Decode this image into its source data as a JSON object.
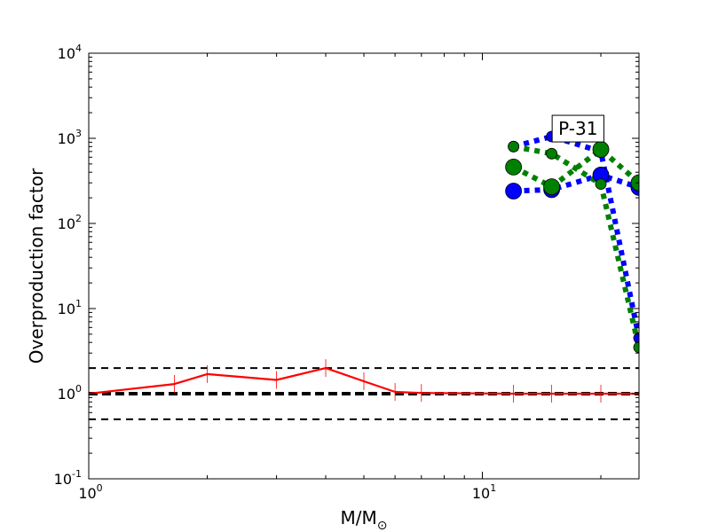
{
  "chart_data": {
    "type": "line",
    "title": "",
    "xlabel": "M/M",
    "xlabel_subscript": "⊙",
    "ylabel": "Overproduction factor",
    "xscale": "log",
    "yscale": "log",
    "xlim": [
      1,
      25
    ],
    "ylim": [
      0.1,
      10000
    ],
    "x_ticks": [
      {
        "value": 1,
        "base": "10",
        "exp": "0"
      },
      {
        "value": 10,
        "base": "10",
        "exp": "1"
      }
    ],
    "y_ticks": [
      {
        "value": 0.1,
        "base": "10",
        "exp": "-1"
      },
      {
        "value": 1,
        "base": "10",
        "exp": "0"
      },
      {
        "value": 10,
        "base": "10",
        "exp": "1"
      },
      {
        "value": 100,
        "base": "10",
        "exp": "2"
      },
      {
        "value": 1000,
        "base": "10",
        "exp": "3"
      },
      {
        "value": 10000,
        "base": "10",
        "exp": "4"
      }
    ],
    "grid": false,
    "legend": "none",
    "reference_lines": [
      {
        "y": 2,
        "style": "dashed",
        "weight": "thin",
        "color": "#000000"
      },
      {
        "y": 1,
        "style": "dashed",
        "weight": "thick",
        "color": "#000000"
      },
      {
        "y": 0.5,
        "style": "dashed",
        "weight": "thin",
        "color": "#000000"
      }
    ],
    "series": [
      {
        "color": "#ff0000",
        "style": "solid",
        "marker": "vline",
        "x": [
          1.0,
          1.65,
          2.0,
          3.0,
          4.0,
          5.0,
          6.0,
          7.0,
          12.0,
          15.0,
          20.0,
          25.0
        ],
        "y": [
          1.0,
          1.3,
          1.7,
          1.45,
          2.0,
          1.4,
          1.05,
          1.02,
          1.0,
          1.0,
          1.0,
          1.0
        ]
      },
      {
        "color": "#0000ff",
        "style": "dotted",
        "marker": "circle",
        "marker_size": "small",
        "x": [
          12.0,
          15.0,
          20.0,
          25.0
        ],
        "y": [
          800,
          1050,
          700,
          4.5
        ]
      },
      {
        "color": "#0000ff",
        "style": "dotted",
        "marker": "circle",
        "marker_size": "large",
        "x": [
          12.0,
          15.0,
          20.0,
          25.0
        ],
        "y": [
          240,
          250,
          370,
          265
        ]
      },
      {
        "color": "#008000",
        "style": "dotted",
        "marker": "circle",
        "marker_size": "small",
        "x": [
          12.0,
          15.0,
          20.0,
          25.0
        ],
        "y": [
          800,
          660,
          290,
          3.5
        ]
      },
      {
        "color": "#008000",
        "style": "dotted",
        "marker": "circle",
        "marker_size": "large",
        "x": [
          12.0,
          15.0,
          20.0,
          25.0
        ],
        "y": [
          460,
          270,
          740,
          300
        ]
      }
    ],
    "annotations": [
      {
        "text": "P-31",
        "x": 17.5,
        "y": 1300,
        "boxed": true
      }
    ]
  }
}
